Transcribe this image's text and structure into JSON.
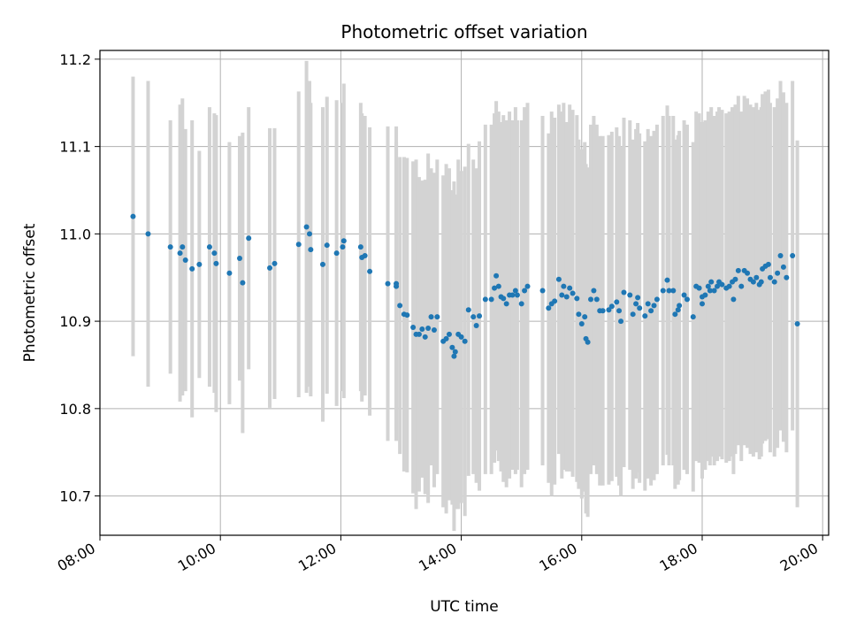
{
  "chart_data": {
    "type": "scatter",
    "title": "Photometric offset variation",
    "xlabel": "UTC time",
    "ylabel": "Photometric offset",
    "x_unit": "hours (UTC)",
    "xlim": [
      8.0,
      20.1
    ],
    "ylim": [
      10.655,
      11.21
    ],
    "x_ticks": [
      8,
      10,
      12,
      14,
      16,
      18,
      20
    ],
    "x_tick_labels": [
      "08:00",
      "10:00",
      "12:00",
      "14:00",
      "16:00",
      "18:00",
      "20:00"
    ],
    "y_ticks": [
      10.7,
      10.8,
      10.9,
      11.0,
      11.1,
      11.2
    ],
    "y_tick_labels": [
      "10.7",
      "10.8",
      "10.9",
      "11.0",
      "11.1",
      "11.2"
    ],
    "grid": true,
    "colors": {
      "point": "#1f77b4",
      "errorbar": "#d3d3d3",
      "grid": "#b0b0b0"
    },
    "series": [
      {
        "points": [
          [
            8.55,
            11.02,
            0.16
          ],
          [
            8.8,
            11.0,
            0.175
          ],
          [
            9.17,
            10.985,
            0.145
          ],
          [
            9.33,
            10.978,
            0.17
          ],
          [
            9.37,
            10.985,
            0.17
          ],
          [
            9.42,
            10.97,
            0.15
          ],
          [
            9.53,
            10.96,
            0.17
          ],
          [
            9.65,
            10.965,
            0.13
          ],
          [
            9.82,
            10.985,
            0.16
          ],
          [
            9.9,
            10.978,
            0.16
          ],
          [
            9.93,
            10.966,
            0.17
          ],
          [
            10.15,
            10.955,
            0.15
          ],
          [
            10.32,
            10.972,
            0.14
          ],
          [
            10.37,
            10.944,
            0.172
          ],
          [
            10.47,
            10.995,
            0.15
          ],
          [
            10.82,
            10.961,
            0.16
          ],
          [
            10.9,
            10.966,
            0.155
          ],
          [
            11.3,
            10.988,
            0.175
          ],
          [
            11.43,
            11.008,
            0.19
          ],
          [
            11.48,
            11.0,
            0.175
          ],
          [
            11.5,
            10.982,
            0.168
          ],
          [
            11.7,
            10.965,
            0.18
          ],
          [
            11.77,
            10.987,
            0.17
          ],
          [
            11.93,
            10.978,
            0.175
          ],
          [
            12.03,
            10.985,
            0.165
          ],
          [
            12.05,
            10.992,
            0.18
          ],
          [
            12.33,
            10.985,
            0.165
          ],
          [
            12.35,
            10.973,
            0.165
          ],
          [
            12.4,
            10.975,
            0.16
          ],
          [
            12.48,
            10.957,
            0.165
          ],
          [
            12.78,
            10.943,
            0.18
          ],
          [
            12.92,
            10.94,
            0.165
          ],
          [
            12.92,
            10.943,
            0.18
          ],
          [
            12.98,
            10.918,
            0.17
          ],
          [
            13.05,
            10.908,
            0.18
          ],
          [
            13.1,
            10.907,
            0.18
          ],
          [
            13.2,
            10.893,
            0.19
          ],
          [
            13.25,
            10.885,
            0.2
          ],
          [
            13.3,
            10.885,
            0.18
          ],
          [
            13.35,
            10.891,
            0.17
          ],
          [
            13.4,
            10.882,
            0.18
          ],
          [
            13.45,
            10.892,
            0.2
          ],
          [
            13.5,
            10.905,
            0.17
          ],
          [
            13.55,
            10.89,
            0.18
          ],
          [
            13.6,
            10.905,
            0.18
          ],
          [
            13.7,
            10.877,
            0.19
          ],
          [
            13.75,
            10.88,
            0.2
          ],
          [
            13.8,
            10.885,
            0.19
          ],
          [
            13.85,
            10.87,
            0.18
          ],
          [
            13.88,
            10.86,
            0.2
          ],
          [
            13.9,
            10.865,
            0.18
          ],
          [
            13.95,
            10.885,
            0.2
          ],
          [
            14.0,
            10.882,
            0.19
          ],
          [
            14.06,
            10.877,
            0.2
          ],
          [
            14.12,
            10.913,
            0.19
          ],
          [
            14.2,
            10.905,
            0.18
          ],
          [
            14.25,
            10.895,
            0.18
          ],
          [
            14.3,
            10.906,
            0.2
          ],
          [
            14.4,
            10.925,
            0.2
          ],
          [
            14.5,
            10.925,
            0.2
          ],
          [
            14.55,
            10.938,
            0.2
          ],
          [
            14.58,
            10.952,
            0.2
          ],
          [
            14.62,
            10.94,
            0.2
          ],
          [
            14.66,
            10.928,
            0.2
          ],
          [
            14.7,
            10.926,
            0.21
          ],
          [
            14.75,
            10.92,
            0.21
          ],
          [
            14.8,
            10.93,
            0.21
          ],
          [
            14.85,
            10.93,
            0.2
          ],
          [
            14.9,
            10.935,
            0.21
          ],
          [
            14.93,
            10.93,
            0.2
          ],
          [
            15.0,
            10.92,
            0.21
          ],
          [
            15.05,
            10.935,
            0.21
          ],
          [
            15.1,
            10.94,
            0.21
          ],
          [
            15.35,
            10.935,
            0.2
          ],
          [
            15.45,
            10.915,
            0.2
          ],
          [
            15.5,
            10.92,
            0.22
          ],
          [
            15.55,
            10.923,
            0.21
          ],
          [
            15.62,
            10.948,
            0.2
          ],
          [
            15.67,
            10.93,
            0.21
          ],
          [
            15.7,
            10.94,
            0.21
          ],
          [
            15.75,
            10.928,
            0.2
          ],
          [
            15.8,
            10.938,
            0.21
          ],
          [
            15.85,
            10.932,
            0.21
          ],
          [
            15.92,
            10.926,
            0.21
          ],
          [
            15.95,
            10.908,
            0.2
          ],
          [
            16.0,
            10.897,
            0.2
          ],
          [
            16.05,
            10.905,
            0.2
          ],
          [
            16.07,
            10.88,
            0.2
          ],
          [
            16.1,
            10.876,
            0.2
          ],
          [
            16.15,
            10.925,
            0.2
          ],
          [
            16.2,
            10.935,
            0.2
          ],
          [
            16.25,
            10.925,
            0.2
          ],
          [
            16.3,
            10.912,
            0.2
          ],
          [
            16.35,
            10.912,
            0.2
          ],
          [
            16.45,
            10.913,
            0.2
          ],
          [
            16.5,
            10.917,
            0.2
          ],
          [
            16.58,
            10.922,
            0.2
          ],
          [
            16.62,
            10.912,
            0.2
          ],
          [
            16.65,
            10.9,
            0.2
          ],
          [
            16.7,
            10.933,
            0.2
          ],
          [
            16.8,
            10.93,
            0.2
          ],
          [
            16.85,
            10.908,
            0.2
          ],
          [
            16.9,
            10.92,
            0.2
          ],
          [
            16.93,
            10.927,
            0.2
          ],
          [
            16.96,
            10.915,
            0.2
          ],
          [
            17.05,
            10.906,
            0.2
          ],
          [
            17.1,
            10.92,
            0.2
          ],
          [
            17.15,
            10.912,
            0.2
          ],
          [
            17.2,
            10.918,
            0.2
          ],
          [
            17.25,
            10.925,
            0.2
          ],
          [
            17.35,
            10.935,
            0.2
          ],
          [
            17.42,
            10.947,
            0.2
          ],
          [
            17.45,
            10.935,
            0.2
          ],
          [
            17.52,
            10.935,
            0.2
          ],
          [
            17.55,
            10.908,
            0.2
          ],
          [
            17.6,
            10.913,
            0.2
          ],
          [
            17.62,
            10.918,
            0.2
          ],
          [
            17.7,
            10.93,
            0.2
          ],
          [
            17.75,
            10.925,
            0.2
          ],
          [
            17.85,
            10.905,
            0.2
          ],
          [
            17.9,
            10.94,
            0.2
          ],
          [
            17.95,
            10.938,
            0.2
          ],
          [
            18.0,
            10.92,
            0.2
          ],
          [
            18.0,
            10.928,
            0.2
          ],
          [
            18.05,
            10.93,
            0.2
          ],
          [
            18.1,
            10.94,
            0.2
          ],
          [
            18.13,
            10.935,
            0.2
          ],
          [
            18.15,
            10.945,
            0.2
          ],
          [
            18.2,
            10.935,
            0.2
          ],
          [
            18.25,
            10.94,
            0.2
          ],
          [
            18.28,
            10.945,
            0.2
          ],
          [
            18.33,
            10.942,
            0.2
          ],
          [
            18.4,
            10.938,
            0.2
          ],
          [
            18.45,
            10.94,
            0.2
          ],
          [
            18.5,
            10.945,
            0.2
          ],
          [
            18.52,
            10.925,
            0.2
          ],
          [
            18.55,
            10.948,
            0.2
          ],
          [
            18.6,
            10.958,
            0.2
          ],
          [
            18.65,
            10.94,
            0.2
          ],
          [
            18.7,
            10.958,
            0.2
          ],
          [
            18.75,
            10.955,
            0.2
          ],
          [
            18.8,
            10.948,
            0.2
          ],
          [
            18.85,
            10.945,
            0.2
          ],
          [
            18.9,
            10.95,
            0.2
          ],
          [
            18.95,
            10.942,
            0.2
          ],
          [
            18.98,
            10.945,
            0.2
          ],
          [
            19.0,
            10.96,
            0.2
          ],
          [
            19.05,
            10.963,
            0.2
          ],
          [
            19.1,
            10.965,
            0.2
          ],
          [
            19.13,
            10.95,
            0.2
          ],
          [
            19.2,
            10.945,
            0.2
          ],
          [
            19.25,
            10.955,
            0.2
          ],
          [
            19.3,
            10.975,
            0.2
          ],
          [
            19.35,
            10.962,
            0.2
          ],
          [
            19.4,
            10.95,
            0.2
          ],
          [
            19.5,
            10.975,
            0.2
          ],
          [
            19.58,
            10.897,
            0.21
          ]
        ]
      }
    ]
  }
}
